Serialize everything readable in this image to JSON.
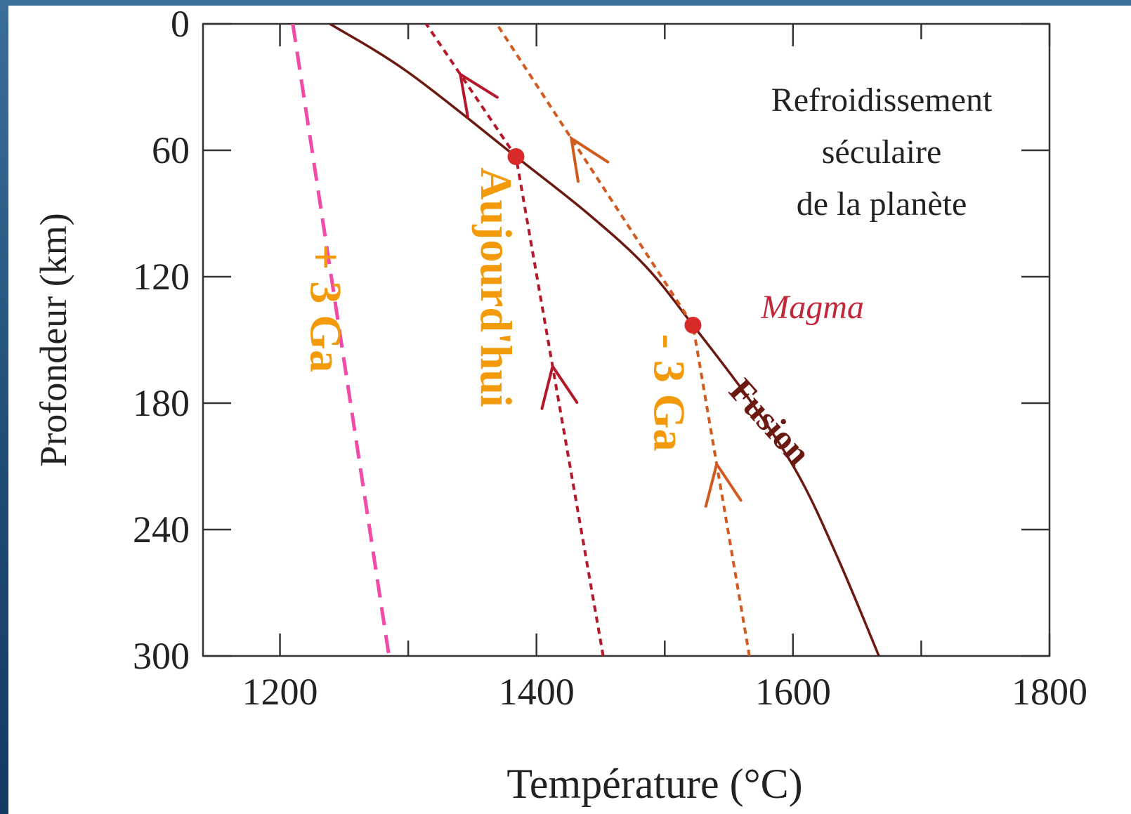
{
  "chart_data": {
    "type": "line",
    "title": "",
    "xlabel": "Température  (°C)",
    "ylabel": "Profondeur (km)",
    "xlim": [
      1140,
      1800
    ],
    "ylim": [
      0,
      300
    ],
    "y_inverted": true,
    "x_ticks": [
      1200,
      1400,
      1600,
      1800
    ],
    "x_tick_labels": [
      "1200",
      "1400",
      "1600",
      "1800"
    ],
    "y_ticks": [
      0,
      60,
      120,
      180,
      240,
      300
    ],
    "y_tick_labels": [
      "0",
      "60",
      "120",
      "180",
      "240",
      "300"
    ],
    "grid": false,
    "annotation": "Refroidissement\nséculaire\nde la planète",
    "series": [
      {
        "name": "Fusion",
        "style": "solid",
        "color": "#6b1a12",
        "points": [
          [
            1239,
            0
          ],
          [
            1300,
            23
          ],
          [
            1384,
            63
          ],
          [
            1440,
            90
          ],
          [
            1485,
            115
          ],
          [
            1522,
            143
          ],
          [
            1568,
            180
          ],
          [
            1605,
            215
          ],
          [
            1636,
            255
          ],
          [
            1667,
            300
          ]
        ]
      },
      {
        "name": "+ 3 Ga",
        "style": "long-dash",
        "color": "#f24aa8",
        "points": [
          [
            1210,
            0
          ],
          [
            1285,
            300
          ]
        ]
      },
      {
        "name": "Aujourd'hui",
        "style": "short-dash",
        "color": "#b5182a",
        "points": [
          [
            1452,
            300
          ],
          [
            1384,
            63
          ],
          [
            1314,
            0
          ]
        ]
      },
      {
        "name": "- 3 Ga",
        "style": "short-dash",
        "color": "#d35a1e",
        "points": [
          [
            1566,
            300
          ],
          [
            1522,
            143
          ],
          [
            1369,
            0
          ]
        ]
      }
    ],
    "labels": [
      {
        "text": "+ 3 Ga",
        "x": 1232,
        "y": 135,
        "color": "#f29a0a"
      },
      {
        "text": "Aujourd'hui",
        "x": 1365,
        "y": 125,
        "color": "#f29a0a"
      },
      {
        "text": "- 3 Ga",
        "x": 1500,
        "y": 175,
        "color": "#f29a0a"
      },
      {
        "text": "Fusion",
        "x": 1580,
        "y": 190,
        "color": "#6b1a12"
      },
      {
        "text": "Magma",
        "x": 1575,
        "y": 136,
        "color": "#c0283a"
      }
    ],
    "points": [
      {
        "name": "Magma",
        "x": 1522,
        "y": 143,
        "color": "#d92a2a"
      },
      {
        "name": "",
        "x": 1384,
        "y": 63,
        "color": "#d92a2a"
      }
    ]
  }
}
